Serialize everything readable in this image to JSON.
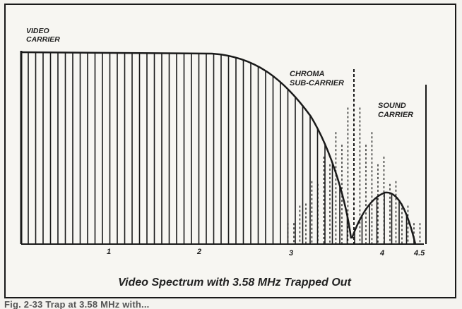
{
  "labels": {
    "video_carrier": [
      "VIDEO",
      "CARRIER"
    ],
    "chroma_sub_carrier": [
      "CHROMA",
      "SUB-CARRIER"
    ],
    "sound_carrier": [
      "SOUND",
      "CARRIER"
    ]
  },
  "axis_ticks": [
    "1",
    "2",
    "3",
    "4",
    "4.5"
  ],
  "title": "Video Spectrum with 3.58 MHz Trapped Out",
  "figure_caption": "Fig. 2-33 Trap at 3.58 MHz with..."
}
